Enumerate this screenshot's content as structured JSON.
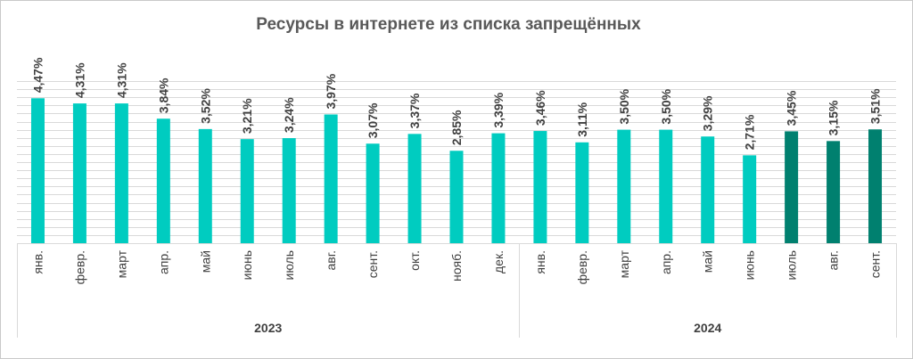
{
  "chart_data": {
    "type": "bar",
    "title": "Ресурсы в интернете из списка запрещённых",
    "xlabel": "",
    "ylabel": "",
    "ylim": [
      0,
      5
    ],
    "grid": true,
    "categories": [
      "янв.",
      "февр.",
      "март",
      "апр.",
      "май",
      "июнь",
      "июль",
      "авг.",
      "сент.",
      "окт.",
      "нояб.",
      "дек.",
      "янв.",
      "февр.",
      "март",
      "апр.",
      "май",
      "июнь",
      "июль",
      "авг.",
      "сент."
    ],
    "groups": [
      {
        "label": "2023",
        "count": 12
      },
      {
        "label": "2024",
        "count": 9
      }
    ],
    "values": [
      4.47,
      4.31,
      4.31,
      3.84,
      3.52,
      3.21,
      3.24,
      3.97,
      3.07,
      3.37,
      2.85,
      3.39,
      3.46,
      3.11,
      3.5,
      3.5,
      3.29,
      2.71,
      3.45,
      3.15,
      3.51
    ],
    "value_labels": [
      "4,47%",
      "4,31%",
      "4,31%",
      "3,84%",
      "3,52%",
      "3,21%",
      "3,24%",
      "3,97%",
      "3,07%",
      "3,37%",
      "2,85%",
      "3,39%",
      "3,46%",
      "3,11%",
      "3,50%",
      "3,50%",
      "3,29%",
      "2,71%",
      "3,45%",
      "3,15%",
      "3,51%"
    ],
    "bar_colors": [
      "#00ccc0",
      "#00ccc0",
      "#00ccc0",
      "#00ccc0",
      "#00ccc0",
      "#00ccc0",
      "#00ccc0",
      "#00ccc0",
      "#00ccc0",
      "#00ccc0",
      "#00ccc0",
      "#00ccc0",
      "#00ccc0",
      "#00ccc0",
      "#00ccc0",
      "#00ccc0",
      "#00ccc0",
      "#00ccc0",
      "#00806f",
      "#00806f",
      "#00806f"
    ]
  }
}
